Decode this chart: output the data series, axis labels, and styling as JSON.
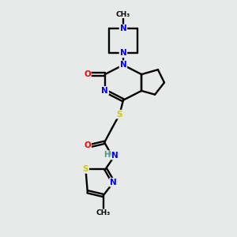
{
  "background_color": "#e8eaea",
  "bond_color": "#000000",
  "atom_colors": {
    "N": "#0000ff",
    "O": "#ff0000",
    "S": "#cccc00",
    "C": "#000000",
    "H": "#4a9a8a"
  },
  "figsize": [
    3.0,
    3.0
  ],
  "dpi": 100
}
